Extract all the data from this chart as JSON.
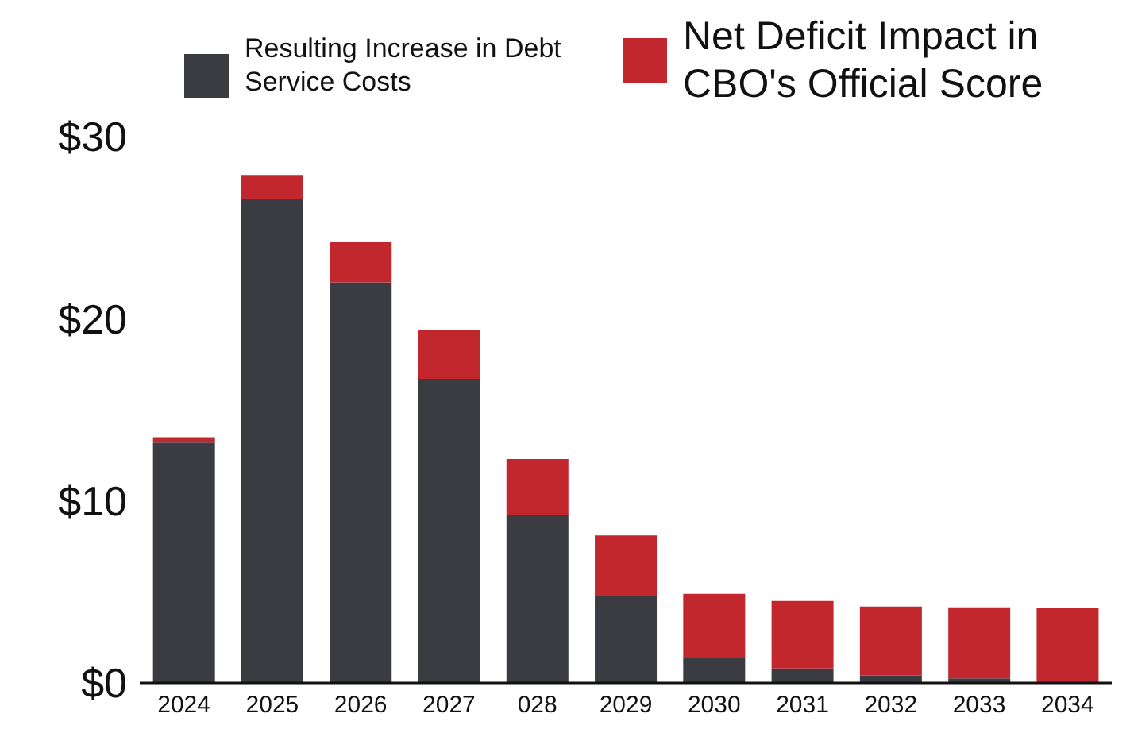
{
  "chart_data": {
    "type": "bar",
    "stacked": true,
    "categories": [
      "2024",
      "2025",
      "2026",
      "2027",
      "028",
      "2029",
      "2030",
      "2031",
      "2032",
      "2033",
      "2034"
    ],
    "series": [
      {
        "name": "Resulting Increase in Debt Service Costs",
        "color": "#3a3c42",
        "values": [
          13.2,
          26.6,
          22.0,
          16.7,
          9.2,
          4.8,
          1.4,
          0.8,
          0.4,
          0.25,
          0
        ]
      },
      {
        "name": "Net Deficit Impact in CBO's Official Score",
        "color": "#c1272d",
        "values": [
          0.3,
          1.3,
          2.2,
          2.7,
          3.1,
          3.3,
          3.5,
          3.7,
          3.8,
          3.9,
          4.1
        ]
      }
    ],
    "ylim": [
      0,
      30
    ],
    "yticks": [
      {
        "value": 0,
        "label": "$0"
      },
      {
        "value": 10,
        "label": "$10"
      },
      {
        "value": 20,
        "label": "$20"
      },
      {
        "value": 30,
        "label": "$30"
      }
    ],
    "grid": false,
    "legend": "top right"
  }
}
